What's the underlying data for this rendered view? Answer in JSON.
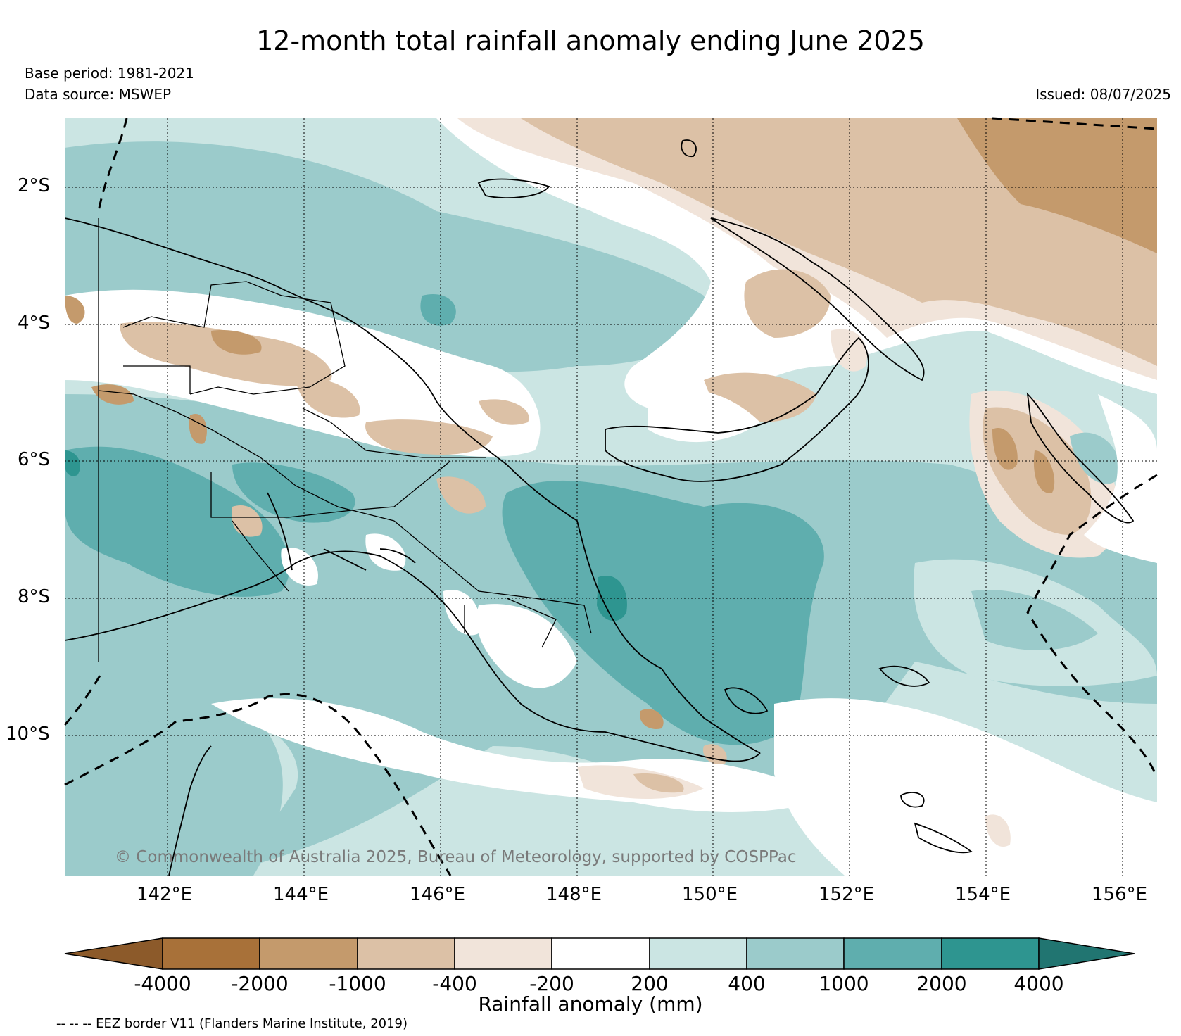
{
  "header": {
    "title": "12-month total rainfall anomaly ending June 2025",
    "base_period": "Base period: 1981-2021",
    "data_source": "Data source: MSWEP",
    "issued": "Issued: 08/07/2025"
  },
  "map": {
    "lat_labels": [
      "2°S",
      "4°S",
      "6°S",
      "8°S",
      "10°S"
    ],
    "lon_labels": [
      "142°E",
      "144°E",
      "146°E",
      "148°E",
      "150°E",
      "152°E",
      "154°E",
      "156°E"
    ],
    "copyright": "© Commonwealth of Australia 2025, Bureau of Meteorology, supported by COSPPac",
    "region": "Papua New Guinea",
    "lon_range": [
      140.4,
      156.5
    ],
    "lat_range": [
      -11.9,
      -0.9
    ]
  },
  "colorbar": {
    "title": "Rainfall anomaly (mm)",
    "tick_labels": [
      "-4000",
      "-2000",
      "-1000",
      "-400",
      "-200",
      "200",
      "400",
      "1000",
      "2000",
      "4000"
    ],
    "colors": [
      "#8c5a2a",
      "#a87139",
      "#c49a6c",
      "#dcc1a6",
      "#f1e4da",
      "#ffffff",
      "#cbe5e3",
      "#9bcbcb",
      "#5faeae",
      "#2e9590",
      "#217571"
    ]
  },
  "footnote": "-- -- -- EEZ border V11 (Flanders Marine Institute, 2019)"
}
